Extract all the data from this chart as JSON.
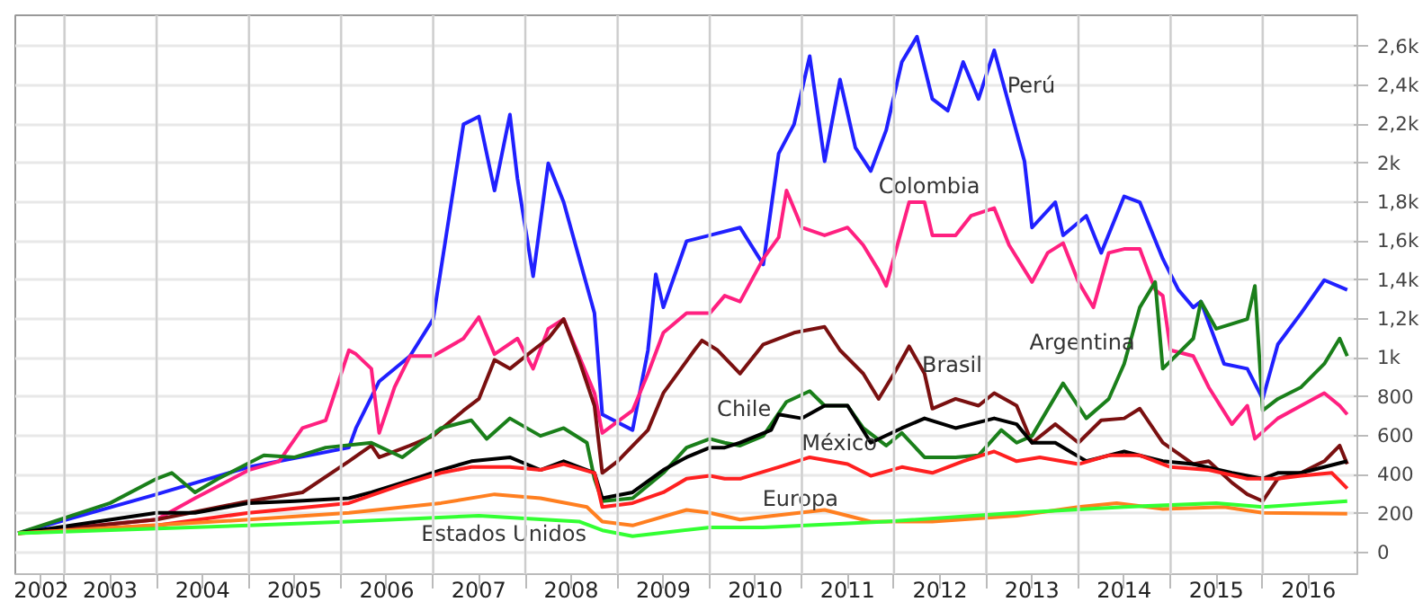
{
  "chart_data": {
    "type": "line",
    "xlim": [
      "2002-06-20",
      "2017-01-10"
    ],
    "ylim": [
      -110,
      2760
    ],
    "xticks": [
      {
        "value": "2002-10-01",
        "label": "2002"
      },
      {
        "value": "2003-01-01",
        "label": null
      },
      {
        "value": "2003-07-01",
        "label": "2003"
      },
      {
        "value": "2004-01-01",
        "label": null
      },
      {
        "value": "2004-07-01",
        "label": "2004"
      },
      {
        "value": "2005-01-01",
        "label": null
      },
      {
        "value": "2005-07-01",
        "label": "2005"
      },
      {
        "value": "2006-01-01",
        "label": null
      },
      {
        "value": "2006-07-01",
        "label": "2006"
      },
      {
        "value": "2007-01-01",
        "label": null
      },
      {
        "value": "2007-07-01",
        "label": "2007"
      },
      {
        "value": "2008-01-01",
        "label": null
      },
      {
        "value": "2008-07-01",
        "label": "2008"
      },
      {
        "value": "2009-01-01",
        "label": null
      },
      {
        "value": "2009-07-01",
        "label": "2009"
      },
      {
        "value": "2010-01-01",
        "label": null
      },
      {
        "value": "2010-07-01",
        "label": "2010"
      },
      {
        "value": "2011-01-01",
        "label": null
      },
      {
        "value": "2011-07-01",
        "label": "2011"
      },
      {
        "value": "2012-01-01",
        "label": null
      },
      {
        "value": "2012-07-01",
        "label": "2012"
      },
      {
        "value": "2013-01-01",
        "label": null
      },
      {
        "value": "2013-07-01",
        "label": "2013"
      },
      {
        "value": "2014-01-01",
        "label": null
      },
      {
        "value": "2014-07-01",
        "label": "2014"
      },
      {
        "value": "2015-01-01",
        "label": null
      },
      {
        "value": "2015-07-01",
        "label": "2015"
      },
      {
        "value": "2016-01-01",
        "label": null
      },
      {
        "value": "2016-07-01",
        "label": "2016"
      }
    ],
    "yticks": [
      0,
      200,
      400,
      600,
      800,
      {
        "value": 1000,
        "label": "1k"
      },
      {
        "value": 1200,
        "label": "1,2k"
      },
      {
        "value": 1400,
        "label": "1,4k"
      },
      {
        "value": 1600,
        "label": "1,6k"
      },
      {
        "value": 1800,
        "label": "1,8k"
      },
      {
        "value": 2000,
        "label": "2k"
      },
      {
        "value": 2200,
        "label": "2,2k"
      },
      {
        "value": 2400,
        "label": "2,4k"
      },
      {
        "value": 2600,
        "label": "2,6k"
      }
    ],
    "grid": true,
    "line_style": "solid",
    "marker": "none",
    "series": [
      {
        "color": "#2020ff",
        "x": [
          "2002-07",
          "2004-01",
          "2005-01",
          "2006-02",
          "2006-03",
          "2006-06",
          "2006-10",
          "2007-01",
          "2007-05",
          "2007-07",
          "2007-09",
          "2007-11",
          "2007-12",
          "2008-02",
          "2008-04",
          "2008-06",
          "2008-10",
          "2008-11",
          "2009-03",
          "2009-05",
          "2009-06",
          "2009-07",
          "2009-10",
          "2010-01",
          "2010-05",
          "2010-08",
          "2010-10",
          "2010-12",
          "2011-02",
          "2011-04",
          "2011-06",
          "2011-08",
          "2011-10",
          "2011-12",
          "2012-02",
          "2012-04",
          "2012-06",
          "2012-08",
          "2012-10",
          "2012-12",
          "2013-02",
          "2013-04",
          "2013-06",
          "2013-07",
          "2013-10",
          "2013-11",
          "2014-02",
          "2014-04",
          "2014-07",
          "2014-09",
          "2014-12",
          "2015-02",
          "2015-04",
          "2015-05",
          "2015-08",
          "2015-11",
          "2016-01",
          "2016-03",
          "2016-06",
          "2016-09",
          "2016-12"
        ],
        "values": [
          100,
          300,
          440,
          540,
          640,
          880,
          1010,
          1200,
          2200,
          2240,
          1860,
          2250,
          1920,
          1420,
          2000,
          1800,
          1230,
          710,
          630,
          1040,
          1430,
          1260,
          1600,
          1630,
          1670,
          1480,
          2050,
          2200,
          2550,
          2010,
          2430,
          2080,
          1960,
          2170,
          2520,
          2650,
          2330,
          2270,
          2520,
          2330,
          2580,
          2300,
          2010,
          1670,
          1800,
          1630,
          1730,
          1540,
          1830,
          1800,
          1510,
          1350,
          1260,
          1290,
          970,
          945,
          790,
          1070,
          1230,
          1400,
          1350
        ]
      },
      {
        "color": "#ff2080",
        "x": [
          "2002-07",
          "2004-01",
          "2004-06",
          "2005-01",
          "2005-05",
          "2005-08",
          "2005-11",
          "2006-02",
          "2006-03",
          "2006-05",
          "2006-06",
          "2006-08",
          "2006-10",
          "2007-01",
          "2007-05",
          "2007-07",
          "2007-09",
          "2007-12",
          "2008-02",
          "2008-04",
          "2008-06",
          "2008-08",
          "2008-10",
          "2008-11",
          "2009-03",
          "2009-05",
          "2009-07",
          "2009-10",
          "2010-01",
          "2010-03",
          "2010-05",
          "2010-08",
          "2010-10",
          "2010-11",
          "2011-01",
          "2011-04",
          "2011-07",
          "2011-09",
          "2011-11",
          "2011-12",
          "2012-03",
          "2012-05",
          "2012-06",
          "2012-09",
          "2012-11",
          "2013-02",
          "2013-04",
          "2013-07",
          "2013-09",
          "2013-11",
          "2014-01",
          "2014-03",
          "2014-05",
          "2014-07",
          "2014-09",
          "2014-11",
          "2014-12",
          "2015-01",
          "2015-04",
          "2015-06",
          "2015-09",
          "2015-11",
          "2015-12",
          "2016-03",
          "2016-06",
          "2016-09",
          "2016-11",
          "2016-12"
        ],
        "values": [
          100,
          170,
          280,
          425,
          470,
          640,
          680,
          1040,
          1020,
          945,
          615,
          850,
          1010,
          1010,
          1100,
          1210,
          1020,
          1100,
          945,
          1150,
          1200,
          1010,
          820,
          615,
          730,
          920,
          1130,
          1230,
          1230,
          1320,
          1290,
          1510,
          1620,
          1860,
          1670,
          1630,
          1670,
          1580,
          1450,
          1370,
          1800,
          1800,
          1630,
          1630,
          1730,
          1770,
          1580,
          1390,
          1540,
          1590,
          1390,
          1260,
          1540,
          1560,
          1560,
          1350,
          1320,
          1040,
          1010,
          850,
          660,
          755,
          585,
          690,
          755,
          820,
          755,
          710
        ]
      },
      {
        "color": "#7a1010",
        "x": [
          "2002-07",
          "2004-01",
          "2005-01",
          "2005-08",
          "2006-02",
          "2006-05",
          "2006-06",
          "2006-10",
          "2007-01",
          "2007-05",
          "2007-07",
          "2007-09",
          "2007-11",
          "2008-02",
          "2008-04",
          "2008-06",
          "2008-08",
          "2008-10",
          "2008-11",
          "2009-01",
          "2009-05",
          "2009-07",
          "2009-11",
          "2009-12",
          "2010-02",
          "2010-05",
          "2010-08",
          "2010-12",
          "2011-04",
          "2011-06",
          "2011-09",
          "2011-11",
          "2012-01",
          "2012-03",
          "2012-05",
          "2012-06",
          "2012-09",
          "2012-12",
          "2013-02",
          "2013-05",
          "2013-07",
          "2013-10",
          "2014-01",
          "2014-04",
          "2014-07",
          "2014-09",
          "2014-12",
          "2015-04",
          "2015-06",
          "2015-09",
          "2015-11",
          "2016-01",
          "2016-03",
          "2016-06",
          "2016-09",
          "2016-11",
          "2016-12"
        ],
        "values": [
          100,
          170,
          265,
          310,
          470,
          550,
          490,
          550,
          600,
          730,
          790,
          990,
          945,
          1040,
          1100,
          1200,
          990,
          755,
          410,
          470,
          630,
          820,
          1040,
          1090,
          1040,
          920,
          1070,
          1130,
          1160,
          1040,
          920,
          790,
          920,
          1060,
          920,
          740,
          790,
          755,
          820,
          755,
          565,
          660,
          565,
          680,
          690,
          740,
          565,
          455,
          470,
          360,
          300,
          265,
          380,
          410,
          470,
          550,
          455
        ]
      },
      {
        "color": "#1a7f1a",
        "x": [
          "2002-07",
          "2003-07",
          "2004-01",
          "2004-03",
          "2004-06",
          "2004-09",
          "2005-03",
          "2005-07",
          "2005-11",
          "2006-05",
          "2006-09",
          "2007-02",
          "2007-06",
          "2007-08",
          "2007-11",
          "2008-03",
          "2008-06",
          "2008-09",
          "2008-10",
          "2008-11",
          "2009-03",
          "2009-07",
          "2009-10",
          "2010-01",
          "2010-03",
          "2010-05",
          "2010-08",
          "2010-11",
          "2011-02",
          "2011-04",
          "2011-07",
          "2011-09",
          "2011-12",
          "2012-02",
          "2012-05",
          "2012-09",
          "2012-12",
          "2013-03",
          "2013-05",
          "2013-07",
          "2013-11",
          "2014-02",
          "2014-05",
          "2014-07",
          "2014-09",
          "2014-11",
          "2014-12",
          "2015-04",
          "2015-05",
          "2015-07",
          "2015-11",
          "2015-12",
          "2016-01",
          "2016-03",
          "2016-06",
          "2016-09",
          "2016-11",
          "2016-12"
        ],
        "values": [
          100,
          255,
          380,
          410,
          310,
          380,
          500,
          490,
          540,
          565,
          490,
          640,
          680,
          585,
          690,
          600,
          640,
          565,
          380,
          265,
          280,
          410,
          540,
          585,
          565,
          550,
          600,
          775,
          830,
          755,
          755,
          640,
          550,
          615,
          490,
          490,
          500,
          630,
          565,
          600,
          870,
          690,
          790,
          970,
          1260,
          1390,
          945,
          1100,
          1290,
          1150,
          1200,
          1370,
          730,
          790,
          850,
          970,
          1100,
          1010
        ]
      },
      {
        "color": "#000000",
        "x": [
          "2002-07",
          "2004-01",
          "2004-06",
          "2005-01",
          "2005-07",
          "2006-02",
          "2006-05",
          "2006-09",
          "2007-02",
          "2007-06",
          "2007-11",
          "2008-03",
          "2008-06",
          "2008-10",
          "2008-11",
          "2009-03",
          "2009-07",
          "2009-10",
          "2010-01",
          "2010-03",
          "2010-05",
          "2010-09",
          "2010-10",
          "2011-01",
          "2011-04",
          "2011-07",
          "2011-10",
          "2012-02",
          "2012-05",
          "2012-09",
          "2013-02",
          "2013-05",
          "2013-07",
          "2013-10",
          "2014-02",
          "2014-07",
          "2014-12",
          "2015-04",
          "2015-09",
          "2016-01",
          "2016-03",
          "2016-06",
          "2016-09",
          "2016-12"
        ],
        "values": [
          100,
          205,
          205,
          255,
          265,
          280,
          310,
          360,
          425,
          470,
          490,
          425,
          470,
          410,
          280,
          310,
          425,
          490,
          540,
          540,
          565,
          630,
          710,
          690,
          755,
          755,
          565,
          640,
          690,
          640,
          690,
          660,
          565,
          565,
          470,
          520,
          470,
          455,
          410,
          380,
          410,
          410,
          440,
          470
        ]
      },
      {
        "color": "#ff2020",
        "x": [
          "2002-07",
          "2004-01",
          "2005-01",
          "2006-02",
          "2006-09",
          "2007-02",
          "2007-06",
          "2007-11",
          "2008-03",
          "2008-06",
          "2008-10",
          "2008-11",
          "2009-03",
          "2009-07",
          "2009-10",
          "2010-01",
          "2010-03",
          "2010-05",
          "2010-10",
          "2011-02",
          "2011-07",
          "2011-10",
          "2012-02",
          "2012-06",
          "2012-10",
          "2013-02",
          "2013-05",
          "2013-08",
          "2014-01",
          "2014-05",
          "2014-09",
          "2015-01",
          "2015-06",
          "2015-11",
          "2016-03",
          "2016-06",
          "2016-10",
          "2016-12"
        ],
        "values": [
          100,
          140,
          205,
          255,
          350,
          410,
          440,
          440,
          425,
          455,
          410,
          235,
          255,
          310,
          380,
          395,
          380,
          380,
          440,
          490,
          455,
          395,
          440,
          410,
          470,
          520,
          470,
          490,
          455,
          500,
          500,
          440,
          425,
          380,
          380,
          395,
          410,
          330
        ]
      },
      {
        "color": "#ff7f20",
        "x": [
          "2002-07",
          "2005-01",
          "2006-02",
          "2007-02",
          "2007-09",
          "2008-03",
          "2008-09",
          "2008-11",
          "2009-03",
          "2009-10",
          "2010-01",
          "2010-05",
          "2011-04",
          "2011-10",
          "2012-06",
          "2013-05",
          "2014-01",
          "2014-06",
          "2014-12",
          "2015-08",
          "2016-01",
          "2016-12"
        ],
        "values": [
          100,
          170,
          205,
          255,
          300,
          280,
          235,
          160,
          140,
          220,
          205,
          170,
          220,
          160,
          160,
          190,
          235,
          255,
          225,
          235,
          205,
          200
        ]
      },
      {
        "color": "#33ff33",
        "x": [
          "2002-07",
          "2005-01",
          "2006-02",
          "2007-07",
          "2008-08",
          "2008-11",
          "2009-03",
          "2010-01",
          "2010-08",
          "2011-12",
          "2013-05",
          "2014-07",
          "2015-07",
          "2016-01",
          "2016-12"
        ],
        "values": [
          100,
          140,
          160,
          190,
          160,
          115,
          85,
          130,
          130,
          160,
          205,
          235,
          255,
          235,
          265
        ]
      }
    ],
    "annotations": [
      "Perú",
      "Colombia",
      "Brasil",
      "Argentina",
      "Chile",
      "México",
      "Europa",
      "Estados Unidos"
    ]
  }
}
